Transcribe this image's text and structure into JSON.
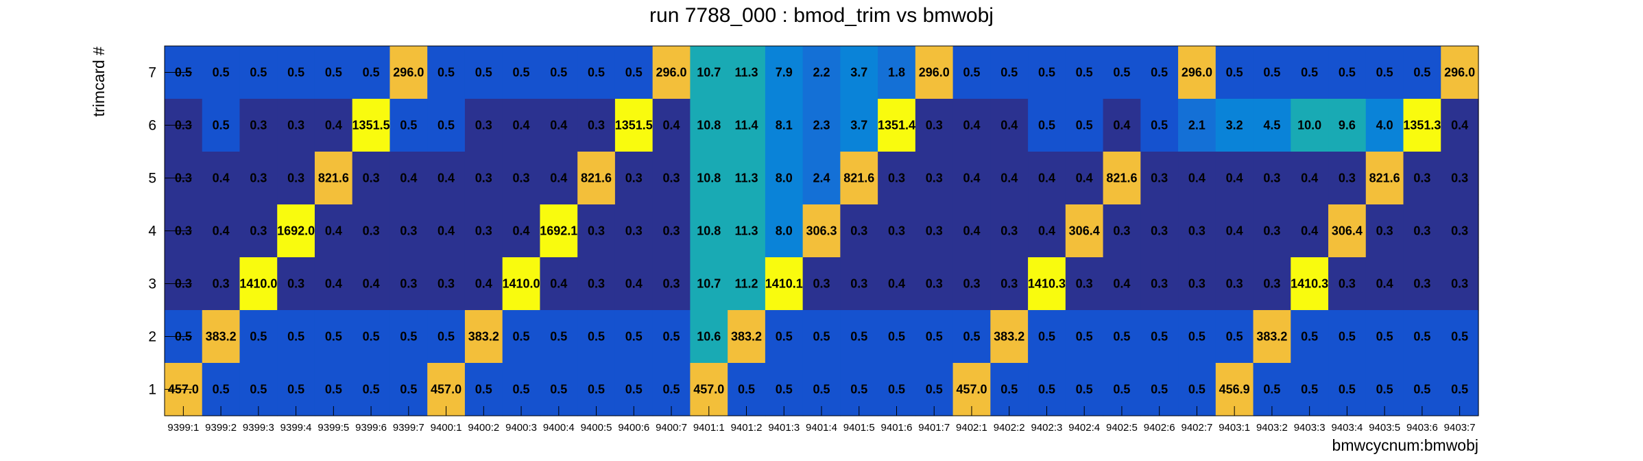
{
  "chart_data": {
    "type": "heatmap",
    "title": "run 7788_000 : bmod_trim vs bmwobj",
    "xlabel": "bmwcycnum:bmwobj",
    "ylabel": "trimcard #",
    "x_categories": [
      "9399:1",
      "9399:2",
      "9399:3",
      "9399:4",
      "9399:5",
      "9399:6",
      "9399:7",
      "9400:1",
      "9400:2",
      "9400:3",
      "9400:4",
      "9400:5",
      "9400:6",
      "9400:7",
      "9401:1",
      "9401:2",
      "9401:3",
      "9401:4",
      "9401:5",
      "9401:6",
      "9401:7",
      "9402:1",
      "9402:2",
      "9402:3",
      "9402:4",
      "9402:5",
      "9402:6",
      "9402:7",
      "9403:1",
      "9403:2",
      "9403:3",
      "9403:4",
      "9403:5",
      "9403:6",
      "9403:7"
    ],
    "y_categories": [
      "1",
      "2",
      "3",
      "4",
      "5",
      "6",
      "7"
    ],
    "rows": [
      {
        "y": "7",
        "values": [
          "0.5",
          "0.5",
          "0.5",
          "0.5",
          "0.5",
          "0.5",
          "296.0",
          "0.5",
          "0.5",
          "0.5",
          "0.5",
          "0.5",
          "0.5",
          "296.0",
          "10.7",
          "11.3",
          "7.9",
          "2.2",
          "3.7",
          "1.8",
          "296.0",
          "0.5",
          "0.5",
          "0.5",
          "0.5",
          "0.5",
          "0.5",
          "296.0",
          "0.5",
          "0.5",
          "0.5",
          "0.5",
          "0.5",
          "0.5",
          "296.0"
        ]
      },
      {
        "y": "6",
        "values": [
          "0.3",
          "0.5",
          "0.3",
          "0.3",
          "0.4",
          "1351.5",
          "0.5",
          "0.5",
          "0.3",
          "0.4",
          "0.4",
          "0.3",
          "1351.5",
          "0.4",
          "10.8",
          "11.4",
          "8.1",
          "2.3",
          "3.7",
          "1351.4",
          "0.3",
          "0.4",
          "0.4",
          "0.5",
          "0.5",
          "0.4",
          "0.5",
          "2.1",
          "3.2",
          "4.5",
          "10.0",
          "9.6",
          "4.0",
          "1351.3",
          "0.4"
        ]
      },
      {
        "y": "5",
        "values": [
          "0.3",
          "0.4",
          "0.3",
          "0.3",
          "821.6",
          "0.3",
          "0.4",
          "0.4",
          "0.3",
          "0.3",
          "0.4",
          "821.6",
          "0.3",
          "0.3",
          "10.8",
          "11.3",
          "8.0",
          "2.4",
          "821.6",
          "0.3",
          "0.3",
          "0.4",
          "0.4",
          "0.4",
          "0.4",
          "821.6",
          "0.3",
          "0.4",
          "0.4",
          "0.3",
          "0.4",
          "0.3",
          "821.6",
          "0.3",
          "0.3"
        ]
      },
      {
        "y": "4",
        "values": [
          "0.3",
          "0.4",
          "0.3",
          "1692.0",
          "0.4",
          "0.3",
          "0.3",
          "0.4",
          "0.3",
          "0.4",
          "1692.1",
          "0.3",
          "0.3",
          "0.3",
          "10.8",
          "11.3",
          "8.0",
          "306.3",
          "0.3",
          "0.3",
          "0.3",
          "0.4",
          "0.3",
          "0.4",
          "306.4",
          "0.3",
          "0.3",
          "0.3",
          "0.4",
          "0.3",
          "0.4",
          "306.4",
          "0.3",
          "0.3",
          "0.3"
        ]
      },
      {
        "y": "3",
        "values": [
          "0.3",
          "0.3",
          "1410.0",
          "0.3",
          "0.4",
          "0.4",
          "0.3",
          "0.3",
          "0.4",
          "1410.0",
          "0.4",
          "0.3",
          "0.4",
          "0.3",
          "10.7",
          "11.2",
          "1410.1",
          "0.3",
          "0.3",
          "0.4",
          "0.3",
          "0.3",
          "0.3",
          "1410.3",
          "0.3",
          "0.4",
          "0.3",
          "0.3",
          "0.3",
          "0.3",
          "1410.3",
          "0.3",
          "0.4",
          "0.3",
          "0.3"
        ]
      },
      {
        "y": "2",
        "values": [
          "0.5",
          "383.2",
          "0.5",
          "0.5",
          "0.5",
          "0.5",
          "0.5",
          "0.5",
          "383.2",
          "0.5",
          "0.5",
          "0.5",
          "0.5",
          "0.5",
          "10.6",
          "383.2",
          "0.5",
          "0.5",
          "0.5",
          "0.5",
          "0.5",
          "0.5",
          "383.2",
          "0.5",
          "0.5",
          "0.5",
          "0.5",
          "0.5",
          "0.5",
          "383.2",
          "0.5",
          "0.5",
          "0.5",
          "0.5",
          "0.5"
        ]
      },
      {
        "y": "1",
        "values": [
          "457.0",
          "0.5",
          "0.5",
          "0.5",
          "0.5",
          "0.5",
          "0.5",
          "457.0",
          "0.5",
          "0.5",
          "0.5",
          "0.5",
          "0.5",
          "0.5",
          "457.0",
          "0.5",
          "0.5",
          "0.5",
          "0.5",
          "0.5",
          "0.5",
          "457.0",
          "0.5",
          "0.5",
          "0.5",
          "0.5",
          "0.5",
          "0.5",
          "456.9",
          "0.5",
          "0.5",
          "0.5",
          "0.5",
          "0.5",
          "0.5"
        ]
      }
    ],
    "colors": {
      "low": "#2b3290",
      "low_mid": "#1552cf",
      "mid": "#0a83d8",
      "teal": "#19aab4",
      "high": "#f3bf3a",
      "max": "#f9fb0e"
    },
    "grid": false,
    "legend": "none"
  }
}
